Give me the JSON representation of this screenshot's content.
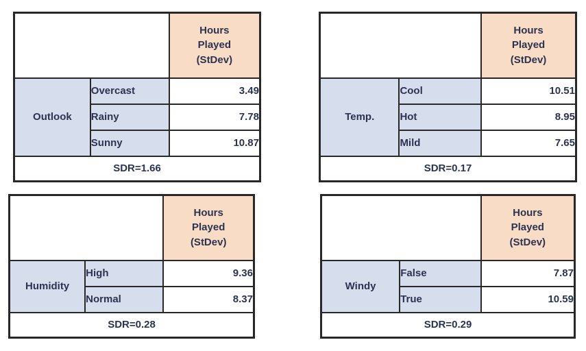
{
  "colors": {
    "page_background": "#ffffff",
    "value_header_background": "#f9dcc5",
    "category_background": "#d6deed",
    "border": "#282828",
    "text": "#2c3350"
  },
  "value_column_header": "Hours\nPlayed\n(StDev)",
  "chart_data": [
    {
      "type": "table",
      "id": "outlook",
      "attribute": "Outlook",
      "value_column_header": "Hours\nPlayed\n(StDev)",
      "rows": [
        {
          "label": "Overcast",
          "stdev": 3.49
        },
        {
          "label": "Rainy",
          "stdev": 7.78
        },
        {
          "label": "Sunny",
          "stdev": 10.87
        }
      ],
      "sdr": 1.66,
      "footer": "SDR=1.66"
    },
    {
      "type": "table",
      "id": "temperature",
      "attribute": "Temp.",
      "value_column_header": "Hours\nPlayed\n(StDev)",
      "rows": [
        {
          "label": "Cool",
          "stdev": 10.51
        },
        {
          "label": "Hot",
          "stdev": 8.95
        },
        {
          "label": "Mild",
          "stdev": 7.65
        }
      ],
      "sdr": 0.17,
      "footer": "SDR=0.17"
    },
    {
      "type": "table",
      "id": "humidity",
      "attribute": "Humidity",
      "value_column_header": "Hours\nPlayed\n(StDev)",
      "rows": [
        {
          "label": "High",
          "stdev": 9.36
        },
        {
          "label": "Normal",
          "stdev": 8.37
        }
      ],
      "sdr": 0.28,
      "footer": "SDR=0.28"
    },
    {
      "type": "table",
      "id": "windy",
      "attribute": "Windy",
      "value_column_header": "Hours\nPlayed\n(StDev)",
      "rows": [
        {
          "label": "False",
          "stdev": 7.87
        },
        {
          "label": "True",
          "stdev": 10.59
        }
      ],
      "sdr": 0.29,
      "footer": "SDR=0.29"
    }
  ]
}
